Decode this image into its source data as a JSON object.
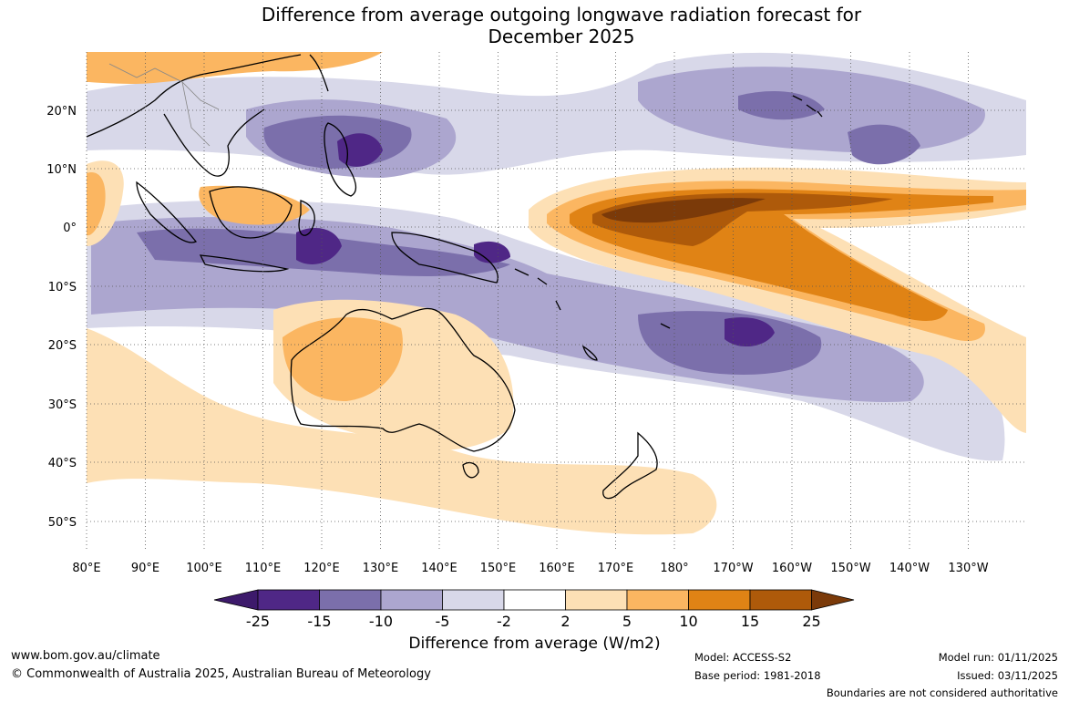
{
  "title_line1": "Difference from average outgoing longwave radiation forecast for",
  "title_line2": "December 2025",
  "lon_labels": [
    "80°E",
    "90°E",
    "100°E",
    "110°E",
    "120°E",
    "130°E",
    "140°E",
    "150°E",
    "160°E",
    "170°E",
    "180°",
    "170°W",
    "160°W",
    "150°W",
    "140°W",
    "130°W"
  ],
  "lat_labels": [
    "20°N",
    "10°N",
    "0°",
    "10°S",
    "20°S",
    "30°S",
    "40°S",
    "50°S"
  ],
  "colorbar": {
    "title": "Difference from average (W/m2)",
    "ticks": [
      "-25",
      "-15",
      "-10",
      "-5",
      "-2",
      "2",
      "5",
      "10",
      "15",
      "25"
    ],
    "colors": [
      "#3d1a6b",
      "#4f2786",
      "#7b6fab",
      "#aca6cf",
      "#d8d8e9",
      "#ffffff",
      "#fde0b5",
      "#fbb661",
      "#e08315",
      "#ae5a0a",
      "#7b3a09"
    ]
  },
  "footer": {
    "website": "www.bom.gov.au/climate",
    "copyright": "© Commonwealth of Australia 2025, Australian Bureau of Meteorology",
    "model": "Model: ACCESS-S2",
    "base_period": "Base period: 1981-2018",
    "model_run": "Model run: 01/11/2025",
    "issued": "Issued: 03/11/2025",
    "disclaimer": "Boundaries are not considered authoritative"
  }
}
